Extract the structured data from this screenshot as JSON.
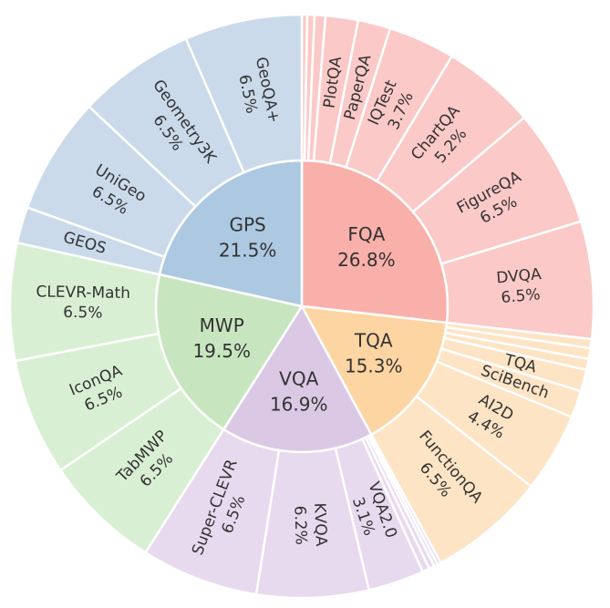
{
  "chart_data": {
    "type": "sunburst",
    "categories": [
      "FQA",
      "TQA",
      "VQA",
      "MWP",
      "GPS"
    ],
    "values": [
      26.8,
      15.3,
      16.9,
      19.5,
      21.5
    ],
    "value_labels": [
      "26.8%",
      "15.3%",
      "16.9%",
      "19.5%",
      "21.5%"
    ],
    "colors": [
      "#f9b0ab",
      "#fdd5a2",
      "#dac8e4",
      "#c7e6bf",
      "#adc9e2"
    ],
    "children": [
      {
        "color": "#fbc9c7",
        "categories": [
          null,
          null,
          null,
          "PlotQA",
          "PaperQA",
          "IQTest",
          "ChartQA",
          "FigureQA",
          "DVQA"
        ],
        "values": [
          0.3,
          0.4,
          0.6,
          1.8,
          1.8,
          3.7,
          5.2,
          6.5,
          6.5
        ],
        "value_labels": [
          null,
          null,
          null,
          null,
          null,
          "3.7%",
          "5.2%",
          "6.5%",
          "6.5%"
        ]
      },
      {
        "color": "#fde4c5",
        "categories": [
          null,
          null,
          null,
          "TQA",
          "SciBench",
          "AI2D",
          "FunctionQA"
        ],
        "values": [
          0.5,
          0.6,
          0.6,
          1.2,
          1.5,
          4.4,
          6.5
        ],
        "value_labels": [
          null,
          null,
          null,
          null,
          null,
          "4.4%",
          "6.5%"
        ]
      },
      {
        "color": "#e7d9ee",
        "categories": [
          null,
          null,
          null,
          null,
          "VQA2.0",
          "KVQA",
          "Super-CLEVR"
        ],
        "values": [
          0.2,
          0.2,
          0.3,
          0.4,
          3.1,
          6.2,
          6.5
        ],
        "value_labels": [
          null,
          null,
          null,
          null,
          "3.1%",
          "6.2%",
          "6.5%"
        ]
      },
      {
        "color": "#d9efd3",
        "categories": [
          "TabMWP",
          "IconQA",
          "CLEVR-Math"
        ],
        "values": [
          6.5,
          6.5,
          6.5
        ],
        "value_labels": [
          "6.5%",
          "6.5%",
          "6.5%"
        ]
      },
      {
        "color": "#cadaeb",
        "categories": [
          "GEOS",
          "UniGeo",
          "Geometry3K",
          "GeoQA+"
        ],
        "values": [
          2.0,
          6.5,
          6.5,
          6.5
        ],
        "value_labels": [
          null,
          "6.5%",
          "6.5%",
          "6.5%"
        ]
      }
    ]
  }
}
